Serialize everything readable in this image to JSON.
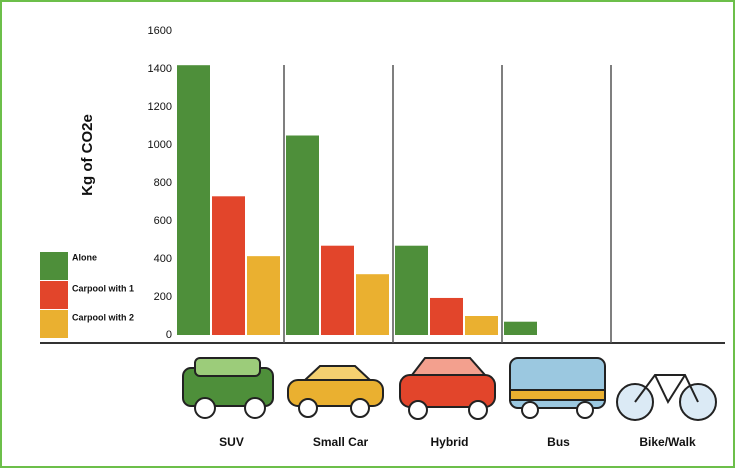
{
  "chart_data": {
    "type": "bar",
    "y_label": "Kg of CO2e",
    "categories": [
      "SUV",
      "Small Car",
      "Hybrid",
      "Bus",
      "Bike/Walk"
    ],
    "series": [
      {
        "name": "Alone",
        "color": "#4e8f3a",
        "values": [
          1420,
          1050,
          470,
          70,
          null
        ]
      },
      {
        "name": "Carpool with 1",
        "color": "#e2452b",
        "values": [
          730,
          470,
          195,
          null,
          null
        ]
      },
      {
        "name": "Carpool with 2",
        "color": "#eab030",
        "values": [
          415,
          320,
          100,
          null,
          null
        ]
      }
    ],
    "ylim": [
      0,
      1600
    ],
    "yticks": [
      0,
      200,
      400,
      600,
      800,
      1000,
      1200,
      1400,
      1600
    ],
    "grid": false
  }
}
